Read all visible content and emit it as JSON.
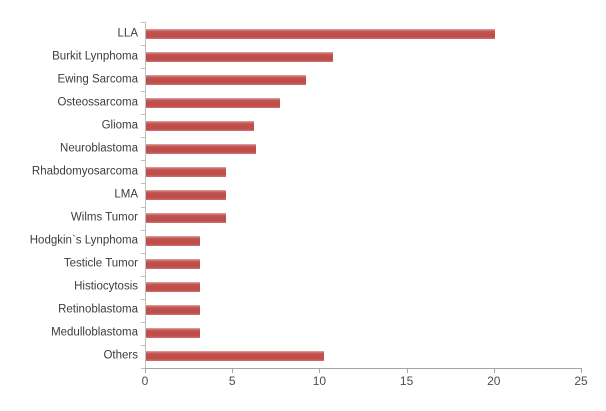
{
  "chart_data": {
    "type": "bar",
    "orientation": "horizontal",
    "title": "",
    "xlabel": "",
    "ylabel": "",
    "categories": [
      "LLA",
      "Burkit Lynphoma",
      "Ewing Sarcoma",
      "Osteossarcoma",
      "Glioma",
      "Neuroblastoma",
      "Rhabdomyosarcoma",
      "LMA",
      "Wilms Tumor",
      "Hodgkin`s Lynphoma",
      "Testicle Tumor",
      "Histiocytosis",
      "Retinoblastoma",
      "Medulloblastoma",
      "Others"
    ],
    "values": [
      20,
      10.7,
      9.2,
      7.7,
      6.2,
      6.3,
      4.6,
      4.6,
      4.6,
      3.1,
      3.1,
      3.1,
      3.1,
      3.1,
      10.2
    ],
    "xlim": [
      0,
      25
    ],
    "x_ticks": [
      "0",
      "5",
      "10",
      "15",
      "20",
      "25"
    ],
    "grid": false,
    "legend": null,
    "colors": {
      "background": "#ffffff",
      "bar_fill": "#bf4e4b",
      "bar_edge_light": "#e0a7a5",
      "x_axis_line": "#a6a6a6",
      "y_axis_line": "#bfbfbf",
      "tick_label": "#4d4d4d",
      "category_label": "#3d3d3d"
    }
  }
}
